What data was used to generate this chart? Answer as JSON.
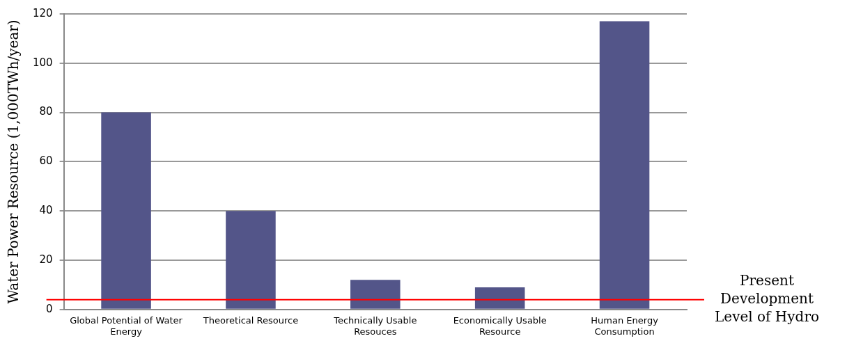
{
  "chart_data": {
    "type": "bar",
    "ylabel": "Water Power Resource (1,000TWh/year)",
    "categories": [
      "Global Potential of Water Energy",
      "Theoretical Resource",
      "Technically Usable Resouces",
      "Economically Usable Resource",
      "Human Energy Consumption"
    ],
    "values": [
      80,
      40,
      12,
      9,
      117
    ],
    "color": "#535589",
    "ylim": [
      0,
      120
    ],
    "yticks": [
      0,
      20,
      40,
      60,
      80,
      100,
      120
    ],
    "grid": "y",
    "legend": false,
    "ref_lines": [
      {
        "axis": "y",
        "value": 4,
        "label": "Present Development Level of Hydro",
        "color": "#ff0000"
      }
    ]
  }
}
